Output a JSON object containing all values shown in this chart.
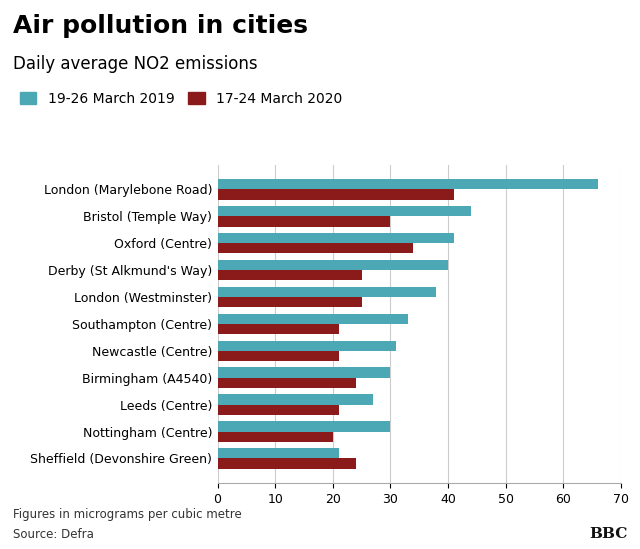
{
  "title": "Air pollution in cities",
  "subtitle": "Daily average NO2 emissions",
  "legend": [
    "19-26 March 2019",
    "17-24 March 2020"
  ],
  "color_2019": "#4da8b5",
  "color_2020": "#8b1a1a",
  "categories": [
    "London (Marylebone Road)",
    "Bristol (Temple Way)",
    "Oxford (Centre)",
    "Derby (St Alkmund's Way)",
    "London (Westminster)",
    "Southampton (Centre)",
    "Newcastle (Centre)",
    "Birmingham (A4540)",
    "Leeds (Centre)",
    "Nottingham (Centre)",
    "Sheffield (Devonshire Green)"
  ],
  "values_2019": [
    66,
    44,
    41,
    40,
    38,
    33,
    31,
    30,
    27,
    30,
    21
  ],
  "values_2020": [
    41,
    30,
    34,
    25,
    25,
    21,
    21,
    24,
    21,
    20,
    24
  ],
  "xlim": [
    0,
    70
  ],
  "xticks": [
    0,
    10,
    20,
    30,
    40,
    50,
    60,
    70
  ],
  "footnote1": "Figures in micrograms per cubic metre",
  "footnote2": "Source: Defra",
  "bbc_label": "BBC",
  "background_color": "#ffffff",
  "title_fontsize": 18,
  "subtitle_fontsize": 12,
  "legend_fontsize": 10,
  "tick_fontsize": 9,
  "bar_height": 0.38
}
